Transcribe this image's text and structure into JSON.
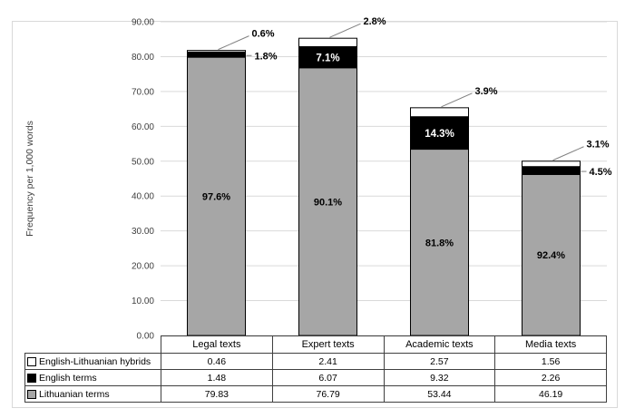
{
  "chart_data": {
    "type": "bar",
    "stacked": true,
    "title": "",
    "ylabel": "Frequency per 1,000 words",
    "ylim": [
      0,
      90
    ],
    "grid": true,
    "y_ticks": [
      "0.00",
      "10.00",
      "20.00",
      "30.00",
      "40.00",
      "50.00",
      "60.00",
      "70.00",
      "80.00",
      "90.00"
    ],
    "categories": [
      "Legal texts",
      "Expert texts",
      "Academic texts",
      "Media texts"
    ],
    "series": [
      {
        "name": "English-Lithuanian hybrids",
        "color": "#ffffff",
        "values": [
          0.46,
          2.41,
          2.57,
          1.56
        ]
      },
      {
        "name": "English terms",
        "color": "#000000",
        "values": [
          1.48,
          6.07,
          9.32,
          2.26
        ]
      },
      {
        "name": "Lithuanian terms",
        "color": "#a6a6a6",
        "values": [
          79.83,
          76.79,
          53.44,
          46.19
        ]
      }
    ],
    "segment_labels": {
      "gray_inside": [
        "97.6%",
        "90.1%",
        "81.8%",
        "92.4%"
      ],
      "black": [
        {
          "text": "1.8%",
          "placement": "side-callout"
        },
        {
          "text": "7.1%",
          "placement": "inside"
        },
        {
          "text": "14.3%",
          "placement": "inside"
        },
        {
          "text": "4.5%",
          "placement": "side-callout"
        }
      ],
      "hybrid_callouts": [
        "0.6%",
        "2.8%",
        "3.9%",
        "3.1%"
      ]
    },
    "legend_position": "table-left",
    "colors": {
      "gridline": "#d9d9d9",
      "axis_text": "#404040",
      "leader": "#808080",
      "bar_stroke": "#000000",
      "table_border": "#404040",
      "outer_border": "#d9d9d9"
    }
  }
}
